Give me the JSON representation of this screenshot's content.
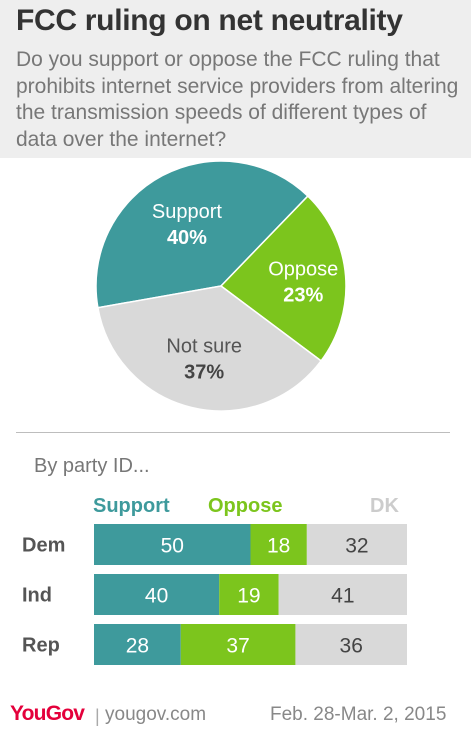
{
  "title": "FCC ruling on net neutrality",
  "subtitle": "Do you support or oppose the FCC ruling that prohibits internet service providers from altering the transmission speeds of different types of data over the internet?",
  "colors": {
    "support": "#3e9a9c",
    "oppose": "#7cc51d",
    "not_sure": "#d9d9d9",
    "logo": "#e4003b"
  },
  "chart_data": [
    {
      "type": "pie",
      "slices": [
        {
          "label": "Support",
          "value": 40,
          "value_label": "40%"
        },
        {
          "label": "Oppose",
          "value": 23,
          "value_label": "23%"
        },
        {
          "label": "Not sure",
          "value": 37,
          "value_label": "37%"
        }
      ]
    },
    {
      "type": "bar",
      "orientation": "horizontal",
      "stacked": true,
      "title": "By party ID...",
      "categories": [
        "Dem",
        "Ind",
        "Rep"
      ],
      "series": [
        {
          "name": "Support",
          "values": [
            50,
            40,
            28
          ]
        },
        {
          "name": "Oppose",
          "values": [
            18,
            19,
            37
          ]
        },
        {
          "name": "DK",
          "values": [
            32,
            41,
            36
          ]
        }
      ],
      "legend_position": "top"
    }
  ],
  "footer": {
    "logo": "YouGov",
    "separator": "|",
    "site": "yougov.com",
    "date": "Feb. 28-Mar. 2, 2015"
  }
}
